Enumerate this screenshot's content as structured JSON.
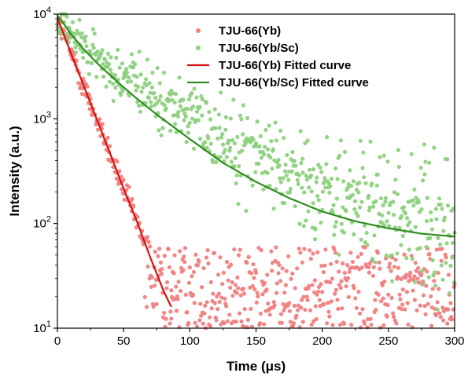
{
  "chart_data": {
    "type": "scatter",
    "title": "",
    "xlabel": "Time (μs)",
    "ylabel": "Intensity (a.u.)",
    "xlim": [
      0,
      300
    ],
    "ylim": [
      10,
      10000
    ],
    "yscale": "log",
    "grid": false,
    "legend_position": "top-right",
    "x_ticks": [
      "0",
      "50",
      "100",
      "150",
      "200",
      "250",
      "300"
    ],
    "y_ticks": [
      {
        "base": "10",
        "exp": "1"
      },
      {
        "base": "10",
        "exp": "2"
      },
      {
        "base": "10",
        "exp": "3"
      },
      {
        "base": "10",
        "exp": "4"
      }
    ],
    "series": [
      {
        "name": "TJU-66(Yb)",
        "kind": "scatter",
        "color": "#f08080",
        "decay": {
          "A": 9200,
          "tau": 13.3,
          "t_end": 86,
          "floor_min": 10,
          "floor_max": 60,
          "floor_t_start": 60,
          "noise": 0.09
        }
      },
      {
        "name": "TJU-66(Yb/Sc)",
        "kind": "scatter",
        "color": "#8ed080",
        "decay": {
          "A1": 4000,
          "tau1": 12,
          "A2": 5700,
          "tau2": 57,
          "C": 55,
          "t_end": 300,
          "noise": 0.13
        }
      },
      {
        "name": "TJU-66(Yb) Fitted curve",
        "kind": "line",
        "color": "#d21414",
        "points": [
          [
            0,
            9200
          ],
          [
            10,
            4300
          ],
          [
            20,
            2050
          ],
          [
            30,
            970
          ],
          [
            40,
            460
          ],
          [
            50,
            215
          ],
          [
            60,
            105
          ],
          [
            70,
            48
          ],
          [
            80,
            23
          ],
          [
            86,
            16
          ]
        ]
      },
      {
        "name": "TJU-66(Yb/Sc) Fitted curve",
        "kind": "line",
        "color": "#2f8e1d",
        "points": [
          [
            0,
            9700
          ],
          [
            5,
            8000
          ],
          [
            10,
            6500
          ],
          [
            20,
            4600
          ],
          [
            30,
            3400
          ],
          [
            40,
            2600
          ],
          [
            50,
            2000
          ],
          [
            60,
            1560
          ],
          [
            75,
            1100
          ],
          [
            100,
            640
          ],
          [
            125,
            380
          ],
          [
            150,
            250
          ],
          [
            175,
            175
          ],
          [
            200,
            130
          ],
          [
            225,
            105
          ],
          [
            250,
            90
          ],
          [
            275,
            80
          ],
          [
            300,
            75
          ]
        ]
      }
    ]
  }
}
